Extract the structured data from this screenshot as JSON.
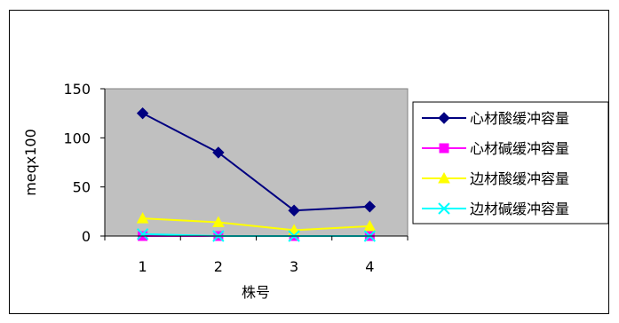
{
  "chart_data": {
    "type": "line",
    "title": "",
    "xlabel": "株号",
    "ylabel": "meqx100",
    "categories": [
      "1",
      "2",
      "3",
      "4"
    ],
    "yticks": [
      "0",
      "50",
      "100",
      "150"
    ],
    "ylim": [
      0,
      150
    ],
    "grid": false,
    "plot_background": "#C0C0C0",
    "legend_position": "right",
    "series": [
      {
        "name": "心材酸缓冲容量",
        "values": [
          125,
          85,
          26,
          30
        ],
        "color": "#000080",
        "marker": "diamond"
      },
      {
        "name": "心材碱缓冲容量",
        "values": [
          0,
          0,
          0,
          0
        ],
        "color": "#FF00FF",
        "marker": "square"
      },
      {
        "name": "边材酸缓冲容量",
        "values": [
          18,
          14,
          6,
          10
        ],
        "color": "#FFFF00",
        "marker": "triangle"
      },
      {
        "name": "边材碱缓冲容量",
        "values": [
          2,
          0,
          0,
          0
        ],
        "color": "#00FFFF",
        "marker": "x"
      }
    ]
  }
}
